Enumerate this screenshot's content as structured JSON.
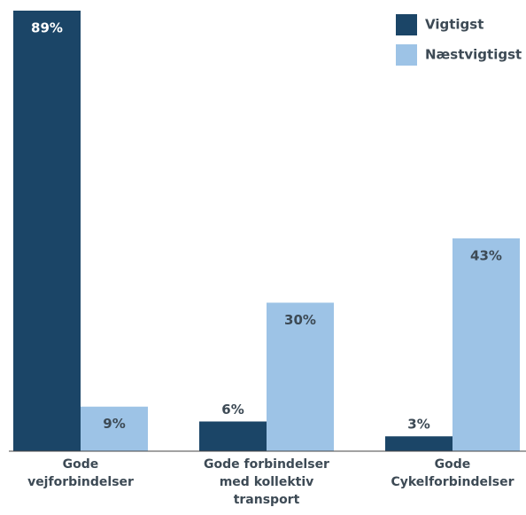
{
  "chart_data": {
    "type": "bar",
    "categories": [
      "Gode\nvejforbindelser",
      "Gode forbindelser\nmed kollektiv\ntransport",
      "Gode\nCykelforbindelser"
    ],
    "series": [
      {
        "name": "Vigtigst",
        "color": "#1b4567",
        "values": [
          89,
          6,
          3
        ],
        "value_labels": [
          "89%",
          "6%",
          "3%"
        ]
      },
      {
        "name": "Næstvigtigst",
        "color": "#9dc3e6",
        "values": [
          9,
          30,
          43
        ],
        "value_labels": [
          "9%",
          "30%",
          "43%"
        ]
      }
    ],
    "legend": "upper right"
  }
}
